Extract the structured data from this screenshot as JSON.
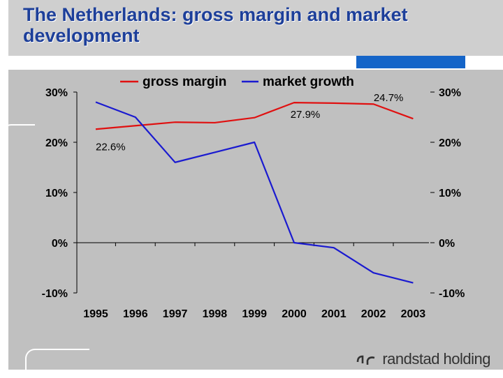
{
  "slide": {
    "title": "The Netherlands: gross margin and market development",
    "brand": "randstad holding"
  },
  "colors": {
    "title": "#1d3f9a",
    "gross_margin": "#e01010",
    "market_growth": "#1a1ad0",
    "accent": "#1565c8",
    "panel": "#c0c0c0"
  },
  "chart_data": {
    "type": "line",
    "x": [
      "1995",
      "1996",
      "1997",
      "1998",
      "1999",
      "2000",
      "2001",
      "2002",
      "2003"
    ],
    "series": [
      {
        "name": "gross margin",
        "axis": "left",
        "values": [
          22.6,
          23.3,
          24.0,
          23.9,
          24.9,
          27.9,
          27.8,
          27.6,
          24.7
        ]
      },
      {
        "name": "market growth",
        "axis": "right",
        "values": [
          28,
          25,
          16,
          18,
          20,
          0,
          -1,
          -6,
          -8
        ]
      }
    ],
    "left_axis": {
      "ticks": [
        "30%",
        "20%",
        "10%",
        "0%",
        "-10%"
      ],
      "ylim": [
        -10,
        30
      ]
    },
    "right_axis": {
      "ticks": [
        "30%",
        "20%",
        "10%",
        "0%",
        "-10%"
      ],
      "ylim": [
        -10,
        30
      ]
    },
    "annotations": [
      {
        "text": "22.6%",
        "series": "gross margin",
        "x": "1995"
      },
      {
        "text": "27.9%",
        "series": "gross margin",
        "x": "2000"
      },
      {
        "text": "24.7%",
        "series": "gross margin",
        "x": "2003"
      }
    ],
    "legend": "top",
    "grid": false
  }
}
